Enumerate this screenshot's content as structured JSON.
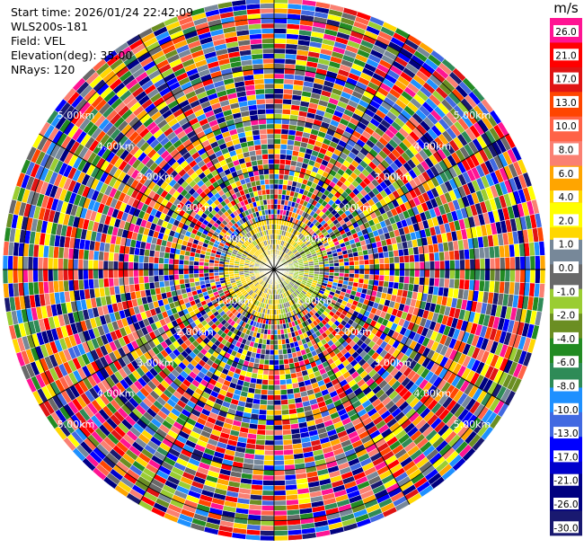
{
  "info": {
    "start_time": "Start time: 2026/01/24 22:42:09",
    "instrument": "WLS200s-181",
    "field": "Field: VEL",
    "elevation": "Elevation(deg): 35.00",
    "nrays": "NRays: 120"
  },
  "chart_data": {
    "type": "heatmap",
    "projection": "polar-ppi",
    "field": "VEL",
    "units": "m/s",
    "nrays": 120,
    "elevation_deg": 35.0,
    "range_rings_km": [
      1.0,
      2.0,
      3.0,
      4.0,
      5.0
    ],
    "range_ring_labels": [
      "1.00km",
      "2.00km",
      "3.00km",
      "4.00km",
      "5.00km"
    ],
    "max_range_km": 5.4,
    "near_region_km": 1.0,
    "near_region_colors": [
      "#ffd700",
      "#9acd32",
      "#808080"
    ],
    "far_region_pattern": "noise",
    "colorbar": {
      "title": "m/s",
      "ticks": [
        "26.0",
        "21.0",
        "17.0",
        "13.0",
        "10.0",
        "8.0",
        "6.0",
        "4.0",
        "2.0",
        "1.0",
        "0.0",
        "-1.0",
        "-2.0",
        "-4.0",
        "-6.0",
        "-8.0",
        "-10.0",
        "-13.0",
        "-17.0",
        "-21.0",
        "-26.0",
        "-30.0"
      ],
      "bins": [
        {
          "color": "#ff1493"
        },
        {
          "color": "#ff1493"
        },
        {
          "color": "#ff0000"
        },
        {
          "color": "#ff0000"
        },
        {
          "color": "#e01414"
        },
        {
          "color": "#e01414"
        },
        {
          "color": "#ff4500"
        },
        {
          "color": "#ff4500"
        },
        {
          "color": "#ff6347"
        },
        {
          "color": "#ff6347"
        },
        {
          "color": "#fa8072"
        },
        {
          "color": "#fa8072"
        },
        {
          "color": "#ffa500"
        },
        {
          "color": "#ffa500"
        },
        {
          "color": "#ffd700"
        },
        {
          "color": "#ffff00"
        },
        {
          "color": "#ffff00"
        },
        {
          "color": "#ffd700"
        },
        {
          "color": "#778899"
        },
        {
          "color": "#778899"
        },
        {
          "color": "#696969"
        },
        {
          "color": "#696969"
        },
        {
          "color": "#9acd32"
        },
        {
          "color": "#9acd32"
        },
        {
          "color": "#6b8e23"
        },
        {
          "color": "#6b8e23"
        },
        {
          "color": "#228b22"
        },
        {
          "color": "#228b22"
        },
        {
          "color": "#2e8b57"
        },
        {
          "color": "#2e8b57"
        },
        {
          "color": "#1e90ff"
        },
        {
          "color": "#1e90ff"
        },
        {
          "color": "#4169e1"
        },
        {
          "color": "#4169e1"
        },
        {
          "color": "#0000ff"
        },
        {
          "color": "#0000ff"
        },
        {
          "color": "#0000cd"
        },
        {
          "color": "#00008b"
        },
        {
          "color": "#000080"
        },
        {
          "color": "#000080"
        },
        {
          "color": "#191970"
        },
        {
          "color": "#191970"
        }
      ]
    }
  }
}
